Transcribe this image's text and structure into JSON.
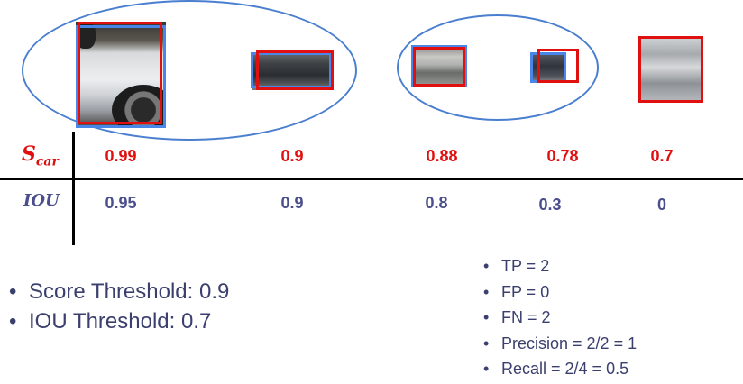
{
  "table": {
    "score_label_base": "S",
    "score_label_sub": "car",
    "iou_label": "IOU",
    "scores": [
      "0.99",
      "0.9",
      "0.88",
      "0.78",
      "0.7"
    ],
    "ious": [
      "0.95",
      "0.9",
      "0.8",
      "0.3",
      "0"
    ]
  },
  "thresholds": [
    "Score Threshold: 0.9",
    "IOU Threshold: 0.7"
  ],
  "metrics": [
    "TP = 2",
    "FP = 0",
    "FN = 2",
    "Precision = 2/2 = 1",
    "Recall = 2/4 = 0.5"
  ],
  "bullet_char": "•",
  "colors": {
    "score": "#e01010",
    "iou": "#4a4e8c",
    "ground_truth_box": "#4a86e8",
    "predicted_box": "#e01010",
    "ellipse": "#4a7fd0"
  }
}
